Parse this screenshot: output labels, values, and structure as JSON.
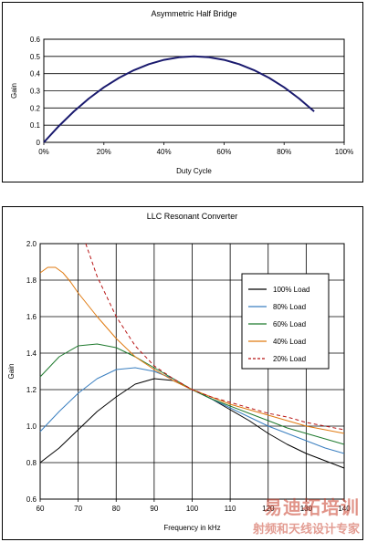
{
  "chart_data": [
    {
      "type": "line",
      "title": "Asymmetric Half Bridge",
      "xlabel": "Duty Cycle",
      "ylabel": "Gain",
      "xlim": [
        0,
        100
      ],
      "ylim": [
        0,
        0.6
      ],
      "xticks": [
        "0%",
        "20%",
        "40%",
        "60%",
        "80%",
        "100%"
      ],
      "yticks": [
        "0",
        "0.1",
        "0.2",
        "0.3",
        "0.4",
        "0.5",
        "0.6"
      ],
      "grid": true,
      "series": [
        {
          "x": [
            0,
            5,
            10,
            15,
            20,
            25,
            30,
            35,
            40,
            45,
            50,
            55,
            60,
            65,
            70,
            75,
            80,
            85,
            90
          ],
          "values": [
            0,
            0.095,
            0.18,
            0.255,
            0.32,
            0.375,
            0.42,
            0.455,
            0.48,
            0.495,
            0.5,
            0.495,
            0.48,
            0.455,
            0.42,
            0.375,
            0.32,
            0.255,
            0.18
          ],
          "color": "#1a1a6e"
        }
      ]
    },
    {
      "type": "line",
      "title": "LLC Resonant Converter",
      "xlabel": "Frequency in kHz",
      "ylabel": "Gain",
      "xlim": [
        60,
        140
      ],
      "ylim": [
        0.6,
        2.0
      ],
      "xticks": [
        "60",
        "70",
        "80",
        "90",
        "100",
        "110",
        "120",
        "130",
        "140"
      ],
      "yticks": [
        "0.6",
        "0.8",
        "1.0",
        "1.2",
        "1.4",
        "1.6",
        "1.8",
        "2.0"
      ],
      "grid": true,
      "legend": "right",
      "series": [
        {
          "name": "100% Load",
          "color": "#000000",
          "dash": false,
          "x": [
            60,
            65,
            70,
            75,
            80,
            85,
            90,
            95,
            100,
            105,
            110,
            115,
            120,
            125,
            130,
            135,
            140
          ],
          "values": [
            0.8,
            0.88,
            0.98,
            1.08,
            1.16,
            1.23,
            1.26,
            1.25,
            1.2,
            1.15,
            1.09,
            1.03,
            0.96,
            0.9,
            0.85,
            0.81,
            0.77
          ]
        },
        {
          "name": "80% Load",
          "color": "#3a7fc0",
          "dash": false,
          "x": [
            60,
            65,
            70,
            75,
            80,
            85,
            90,
            95,
            100,
            105,
            110,
            115,
            120,
            125,
            130,
            135,
            140
          ],
          "values": [
            0.97,
            1.08,
            1.18,
            1.26,
            1.31,
            1.32,
            1.3,
            1.26,
            1.2,
            1.15,
            1.1,
            1.05,
            1.0,
            0.96,
            0.92,
            0.88,
            0.85
          ]
        },
        {
          "name": "60% Load",
          "color": "#1f7a2e",
          "dash": false,
          "x": [
            60,
            65,
            70,
            75,
            80,
            85,
            90,
            95,
            100,
            105,
            110,
            115,
            120,
            125,
            130,
            135,
            140
          ],
          "values": [
            1.27,
            1.38,
            1.44,
            1.45,
            1.43,
            1.38,
            1.32,
            1.26,
            1.2,
            1.15,
            1.11,
            1.07,
            1.03,
            0.99,
            0.96,
            0.93,
            0.9
          ]
        },
        {
          "name": "40% Load",
          "color": "#e07a10",
          "dash": false,
          "x": [
            60,
            62,
            64,
            66,
            68,
            70,
            75,
            80,
            85,
            90,
            95,
            100,
            105,
            110,
            115,
            120,
            125,
            130,
            135,
            140
          ],
          "values": [
            1.84,
            1.87,
            1.87,
            1.84,
            1.79,
            1.73,
            1.6,
            1.48,
            1.38,
            1.31,
            1.25,
            1.2,
            1.16,
            1.12,
            1.09,
            1.06,
            1.03,
            1.0,
            0.98,
            0.96
          ]
        },
        {
          "name": "20% Load",
          "color": "#b81414",
          "dash": true,
          "x": [
            72,
            75,
            80,
            85,
            90,
            95,
            100,
            105,
            110,
            115,
            120,
            125,
            130,
            135,
            140
          ],
          "values": [
            2.0,
            1.82,
            1.6,
            1.44,
            1.33,
            1.26,
            1.2,
            1.16,
            1.13,
            1.1,
            1.07,
            1.05,
            1.02,
            1.0,
            0.98
          ]
        }
      ]
    }
  ],
  "watermark": {
    "text_big": "易迪拓培训",
    "text_small": "射频和天线设计专家"
  }
}
